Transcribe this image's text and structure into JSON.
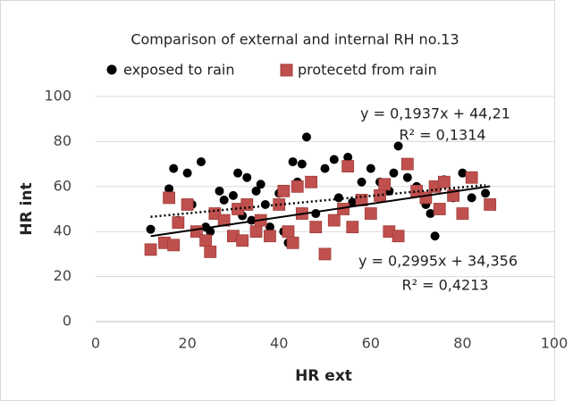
{
  "chart_data": {
    "type": "scatter",
    "title": "Comparison of external and internal RH no.13",
    "x_label": "HR ext",
    "y_label": "HR int",
    "xlim": [
      0,
      100
    ],
    "xticks": [
      0,
      20,
      40,
      60,
      80,
      100
    ],
    "ylim": [
      0,
      100
    ],
    "yticks": [
      0,
      20,
      40,
      60,
      80,
      100
    ],
    "grid": true,
    "legend": "top",
    "series": [
      {
        "name": "exposed to rain",
        "color": "#000000",
        "marker": "circle",
        "x": [
          12,
          16,
          17,
          18,
          20,
          21,
          23,
          24,
          25,
          27,
          28,
          30,
          31,
          32,
          33,
          34,
          35,
          36,
          37,
          38,
          40,
          41,
          42,
          43,
          44,
          45,
          46,
          48,
          50,
          52,
          53,
          55,
          56,
          58,
          60,
          62,
          64,
          65,
          66,
          68,
          70,
          72,
          73,
          74,
          76,
          78,
          80,
          82,
          85
        ],
        "values": [
          41,
          59,
          68,
          45,
          66,
          52,
          71,
          42,
          40,
          58,
          54,
          56,
          66,
          47,
          64,
          45,
          58,
          61,
          52,
          42,
          57,
          40,
          35,
          71,
          62,
          70,
          82,
          48,
          68,
          72,
          55,
          73,
          53,
          62,
          68,
          62,
          58,
          66,
          78,
          64,
          60,
          52,
          48,
          38,
          63,
          55,
          66,
          55,
          57
        ]
      },
      {
        "name": "protecetd from rain",
        "color": "#c0504d",
        "marker": "square",
        "x": [
          12,
          15,
          16,
          17,
          18,
          20,
          22,
          24,
          25,
          26,
          28,
          30,
          31,
          32,
          33,
          35,
          36,
          38,
          40,
          41,
          42,
          43,
          44,
          45,
          47,
          48,
          50,
          52,
          54,
          55,
          56,
          58,
          60,
          62,
          63,
          64,
          66,
          68,
          70,
          72,
          74,
          75,
          76,
          78,
          80,
          82,
          86
        ],
        "values": [
          32,
          35,
          55,
          34,
          44,
          52,
          40,
          36,
          31,
          48,
          45,
          38,
          50,
          36,
          52,
          40,
          45,
          38,
          52,
          58,
          40,
          35,
          60,
          48,
          62,
          42,
          30,
          45,
          50,
          69,
          42,
          54,
          48,
          56,
          61,
          40,
          38,
          70,
          58,
          55,
          60,
          50,
          62,
          56,
          48,
          64,
          52
        ]
      }
    ],
    "trendlines": [
      {
        "series": 0,
        "style": "dotted",
        "slope": 0.1937,
        "intercept": 44.21,
        "equation": "y = 0,1937x + 44,21",
        "r2": "R² = 0,1314"
      },
      {
        "series": 1,
        "style": "solid",
        "slope": 0.2995,
        "intercept": 34.356,
        "equation": "y = 0,2995x + 34,356",
        "r2": "R² = 0,4213"
      }
    ]
  }
}
